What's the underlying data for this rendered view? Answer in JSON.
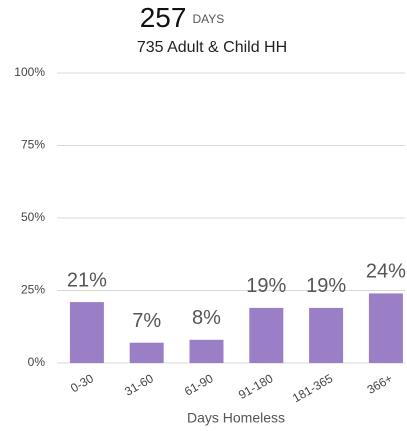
{
  "chart_data": {
    "type": "bar",
    "title": "257",
    "title_suffix": "DAYS",
    "subtitle": "735 Adult & Child HH",
    "x_label": "Days Homeless",
    "categories": [
      "0-30",
      "31-60",
      "61-90",
      "91-180",
      "181-365",
      "366+"
    ],
    "values": [
      21,
      7,
      8,
      19,
      19,
      24
    ],
    "value_labels": [
      "21%",
      "7%",
      "8%",
      "19%",
      "19%",
      "24%"
    ],
    "color": "#9a7fc6",
    "ylim": [
      0,
      100
    ],
    "yticks": [
      {
        "value": 0,
        "label": "0%"
      },
      {
        "value": 25,
        "label": "25%"
      },
      {
        "value": 50,
        "label": "50%"
      },
      {
        "value": 75,
        "label": "75%"
      },
      {
        "value": 100,
        "label": "100%"
      }
    ],
    "grid": true
  }
}
